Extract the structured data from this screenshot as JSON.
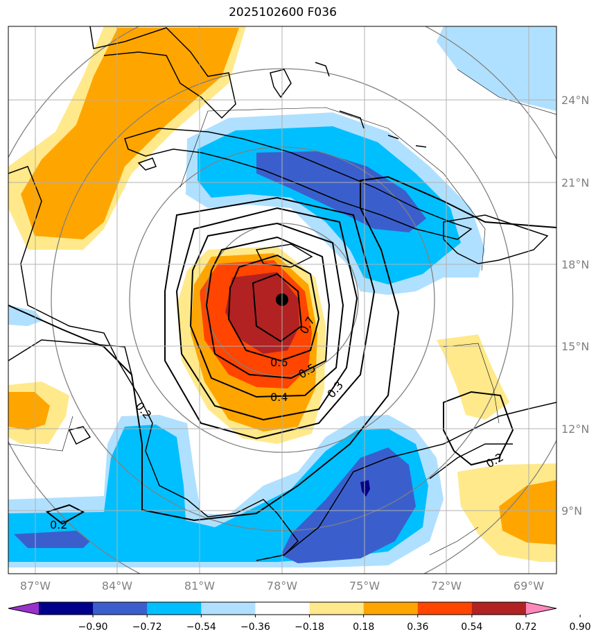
{
  "title": "2025102600 F036",
  "latitude_labels": [
    "24°N",
    "21°N",
    "18°N",
    "15°N",
    "12°N",
    "9°N"
  ],
  "longitude_labels": [
    "87°W",
    "84°W",
    "81°W",
    "78°W",
    "75°W",
    "72°W",
    "69°W"
  ],
  "contour_labels": [
    "0.7",
    "0.6",
    "0.5",
    "0.4",
    "0.3",
    "0.2",
    "0.2",
    "0.2"
  ],
  "colorbar": {
    "ticks": [
      "−0.90",
      "−0.72",
      "−0.54",
      "−0.36",
      "−0.18",
      "0.18",
      "0.36",
      "0.54",
      "0.72",
      "0.90"
    ],
    "colors": [
      "#9932cc",
      "#00008b",
      "#3a5fcd",
      "#00bfff",
      "#b0e0ff",
      "#ffffff",
      "#ffe98a",
      "#ffa500",
      "#ff4500",
      "#b22222",
      "#ff88bb"
    ]
  },
  "center_marker": {
    "lat": 16.7,
    "lon": -78.0
  }
}
